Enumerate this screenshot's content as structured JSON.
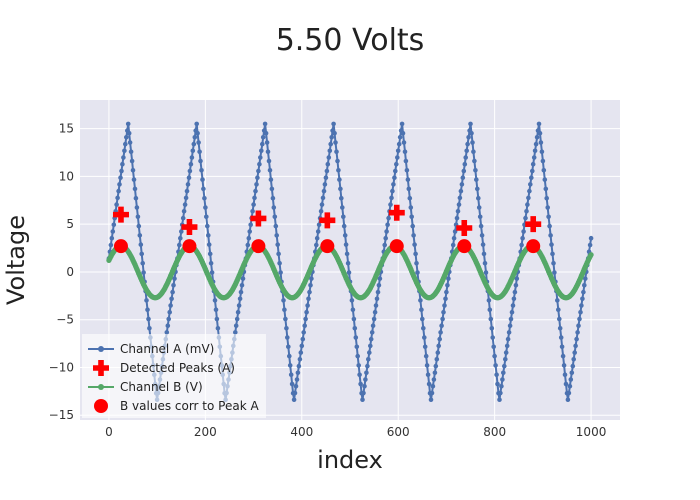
{
  "chart_data": {
    "type": "line",
    "title": "5.50 Volts",
    "xlabel": "index",
    "ylabel": "Voltage",
    "xlim": [
      -60,
      1060
    ],
    "ylim": [
      -15.5,
      18
    ],
    "xticks": [
      0,
      200,
      400,
      600,
      800,
      1000
    ],
    "yticks": [
      -15,
      -10,
      -5,
      0,
      5,
      10,
      15
    ],
    "grid": true,
    "legend_position": "bottom-left",
    "series": [
      {
        "name": "Channel A (mV)",
        "color": "#4c72b0",
        "style": "line+markers",
        "shape": "sawtooth",
        "x_range": [
          0,
          1000
        ],
        "period": 142,
        "phase_of_first_peak": 40,
        "peak_value": 15.5,
        "trough_value": -13.5
      },
      {
        "name": "Detected Peaks (A)",
        "color": "#ff0000",
        "style": "markers",
        "marker": "cross",
        "x": [
          25,
          167,
          310,
          453,
          597,
          737,
          880
        ],
        "y": [
          6.0,
          4.7,
          5.6,
          5.4,
          6.2,
          4.6,
          5.0
        ]
      },
      {
        "name": "Channel B (V)",
        "color": "#55a868",
        "style": "line+markers",
        "shape": "sine",
        "x_range": [
          0,
          1000
        ],
        "period": 142,
        "amplitude": 2.7,
        "phase_of_first_peak": 25
      },
      {
        "name": "B values corr to Peak A",
        "color": "#ff0000",
        "style": "markers",
        "marker": "circle",
        "x": [
          25,
          167,
          310,
          453,
          597,
          737,
          880
        ],
        "y": [
          2.7,
          2.7,
          2.7,
          2.7,
          2.7,
          2.7,
          2.7
        ]
      }
    ]
  }
}
